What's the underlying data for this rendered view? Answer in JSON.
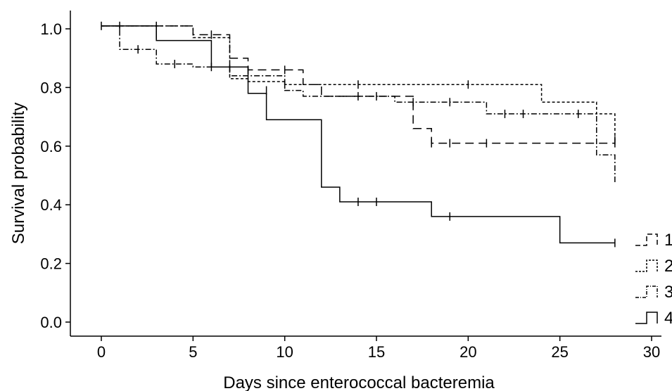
{
  "chart_data": {
    "type": "line",
    "subtype": "kaplan-meier step",
    "title": "",
    "xlabel": "Days since enterococcal bacteremia",
    "ylabel": "Survival probability",
    "xlim": [
      0,
      30
    ],
    "ylim": [
      0,
      1
    ],
    "xticks": [
      0,
      5,
      10,
      15,
      20,
      25,
      30
    ],
    "xtick_labels": [
      "0",
      "5",
      "10",
      "15",
      "20",
      "25",
      "30"
    ],
    "yticks": [
      0,
      0.2,
      0.4,
      0.6,
      0.8,
      1.0
    ],
    "ytick_labels": [
      "0.0",
      "0.2",
      "0.4",
      "0.6",
      "0.8",
      "1.0"
    ],
    "grid": false,
    "legend_position": "right",
    "series": [
      {
        "name": "1",
        "style": "long-dash",
        "steps": [
          [
            0,
            1.01
          ],
          [
            5,
            0.98
          ],
          [
            7,
            0.9
          ],
          [
            8,
            0.86
          ],
          [
            11,
            0.81
          ],
          [
            12,
            0.77
          ],
          [
            17,
            0.66
          ],
          [
            18,
            0.61
          ],
          [
            28,
            0.61
          ]
        ],
        "censored": [
          [
            1,
            1.01
          ],
          [
            3,
            1.01
          ],
          [
            6,
            0.98
          ],
          [
            8,
            0.86
          ],
          [
            10,
            0.86
          ],
          [
            14,
            0.77
          ],
          [
            18,
            0.61
          ],
          [
            19,
            0.61
          ],
          [
            21,
            0.61
          ],
          [
            28,
            0.61
          ]
        ]
      },
      {
        "name": "2",
        "style": "dashed",
        "steps": [
          [
            0,
            1.01
          ],
          [
            5,
            0.97
          ],
          [
            7,
            0.83
          ],
          [
            8,
            0.82
          ],
          [
            10,
            0.81
          ],
          [
            24,
            0.75
          ],
          [
            27,
            0.71
          ],
          [
            28,
            0.62
          ]
        ],
        "censored": [
          [
            3,
            0.98
          ],
          [
            10,
            0.81
          ],
          [
            14,
            0.81
          ],
          [
            20,
            0.81
          ],
          [
            28,
            0.62
          ]
        ]
      },
      {
        "name": "3",
        "style": "dot-dash",
        "steps": [
          [
            0,
            1.01
          ],
          [
            1,
            0.93
          ],
          [
            3,
            0.88
          ],
          [
            5,
            0.87
          ],
          [
            7,
            0.84
          ],
          [
            10,
            0.79
          ],
          [
            11,
            0.77
          ],
          [
            16,
            0.75
          ],
          [
            21,
            0.71
          ],
          [
            27,
            0.57
          ],
          [
            28,
            0.47
          ]
        ],
        "censored": [
          [
            2,
            0.93
          ],
          [
            4,
            0.88
          ],
          [
            6,
            0.87
          ],
          [
            9,
            0.79
          ],
          [
            15,
            0.77
          ],
          [
            17,
            0.75
          ],
          [
            19,
            0.75
          ],
          [
            22,
            0.71
          ],
          [
            23,
            0.71
          ],
          [
            26,
            0.71
          ]
        ]
      },
      {
        "name": "4",
        "style": "solid",
        "steps": [
          [
            0,
            1.01
          ],
          [
            3,
            0.96
          ],
          [
            6,
            0.87
          ],
          [
            8,
            0.78
          ],
          [
            9,
            0.69
          ],
          [
            12,
            0.46
          ],
          [
            13,
            0.41
          ],
          [
            18,
            0.36
          ],
          [
            25,
            0.27
          ],
          [
            28,
            0.27
          ]
        ],
        "censored": [
          [
            0,
            1.01
          ],
          [
            7,
            0.87
          ],
          [
            14,
            0.41
          ],
          [
            15,
            0.41
          ],
          [
            19,
            0.36
          ],
          [
            28,
            0.27
          ]
        ]
      }
    ],
    "legend": [
      {
        "label": "1",
        "style": "long-dash"
      },
      {
        "label": "2",
        "style": "dashed"
      },
      {
        "label": "3",
        "style": "dot-dash"
      },
      {
        "label": "4",
        "style": "solid"
      }
    ]
  }
}
